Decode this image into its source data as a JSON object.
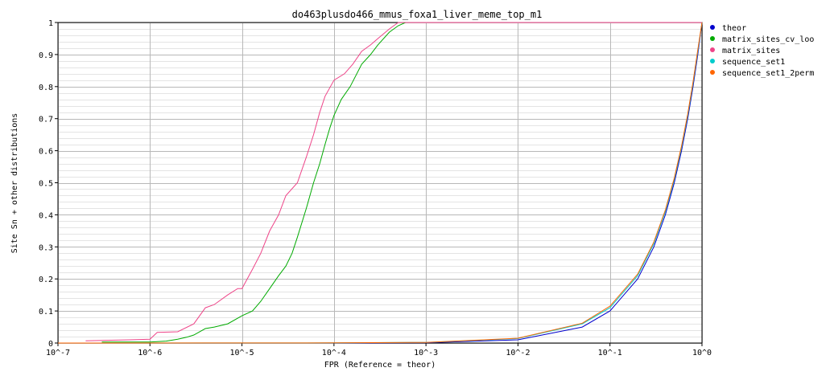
{
  "chart_data": {
    "type": "line",
    "title": "do463plusdo466_mmus_foxa1_liver_meme_top_m1",
    "xlabel": "FPR (Reference = theor)",
    "ylabel": "Site Sn + other distributions",
    "xscale": "log",
    "xlim": [
      1e-07,
      1
    ],
    "ylim": [
      0,
      1
    ],
    "x_tick_labels": [
      "10^-7",
      "10^-6",
      "10^-5",
      "10^-4",
      "10^-3",
      "10^-2",
      "10^-1",
      "10^0"
    ],
    "y_tick_labels": [
      "0",
      "0.1",
      "0.2",
      "0.3",
      "0.4",
      "0.5",
      "0.6",
      "0.7",
      "0.8",
      "0.9",
      "1"
    ],
    "grid": true,
    "legend_position": "right",
    "series": [
      {
        "name": "theor",
        "color": "#0000cc",
        "points": [
          [
            1e-07,
            0
          ],
          [
            0.0001,
            0.0001
          ],
          [
            0.001,
            0.001
          ],
          [
            0.01,
            0.01
          ],
          [
            0.05,
            0.05
          ],
          [
            0.1,
            0.1
          ],
          [
            0.2,
            0.2
          ],
          [
            0.3,
            0.3
          ],
          [
            0.4,
            0.4
          ],
          [
            0.5,
            0.5
          ],
          [
            0.6,
            0.6
          ],
          [
            0.7,
            0.7
          ],
          [
            0.8,
            0.8
          ],
          [
            0.9,
            0.9
          ],
          [
            1,
            1
          ]
        ]
      },
      {
        "name": "matrix_sites_cv_loo",
        "color": "#00aa00",
        "points": [
          [
            3e-07,
            0.003
          ],
          [
            1e-06,
            0.003
          ],
          [
            1.5e-06,
            0.006
          ],
          [
            2e-06,
            0.012
          ],
          [
            2.5e-06,
            0.018
          ],
          [
            3e-06,
            0.025
          ],
          [
            4e-06,
            0.045
          ],
          [
            5e-06,
            0.05
          ],
          [
            7e-06,
            0.06
          ],
          [
            1e-05,
            0.085
          ],
          [
            1.3e-05,
            0.1
          ],
          [
            1.6e-05,
            0.13
          ],
          [
            2e-05,
            0.17
          ],
          [
            2.5e-05,
            0.21
          ],
          [
            3e-05,
            0.24
          ],
          [
            3.5e-05,
            0.28
          ],
          [
            4e-05,
            0.33
          ],
          [
            5e-05,
            0.42
          ],
          [
            6e-05,
            0.5
          ],
          [
            7e-05,
            0.56
          ],
          [
            8e-05,
            0.62
          ],
          [
            9e-05,
            0.67
          ],
          [
            0.0001,
            0.71
          ],
          [
            0.00012,
            0.76
          ],
          [
            0.00015,
            0.8
          ],
          [
            0.0002,
            0.87
          ],
          [
            0.00025,
            0.9
          ],
          [
            0.0003,
            0.93
          ],
          [
            0.0004,
            0.97
          ],
          [
            0.0005,
            0.99
          ],
          [
            0.0006,
            1
          ],
          [
            0.001,
            1
          ],
          [
            1,
            1
          ]
        ]
      },
      {
        "name": "matrix_sites",
        "color": "#ee4488",
        "points": [
          [
            2e-07,
            0.007
          ],
          [
            6e-07,
            0.01
          ],
          [
            1e-06,
            0.012
          ],
          [
            1.2e-06,
            0.033
          ],
          [
            2e-06,
            0.035
          ],
          [
            3e-06,
            0.06
          ],
          [
            4e-06,
            0.11
          ],
          [
            5e-06,
            0.12
          ],
          [
            7e-06,
            0.15
          ],
          [
            9e-06,
            0.17
          ],
          [
            1e-05,
            0.17
          ],
          [
            1.3e-05,
            0.23
          ],
          [
            1.6e-05,
            0.28
          ],
          [
            2e-05,
            0.35
          ],
          [
            2.5e-05,
            0.4
          ],
          [
            3e-05,
            0.46
          ],
          [
            4e-05,
            0.5
          ],
          [
            5e-05,
            0.58
          ],
          [
            6e-05,
            0.65
          ],
          [
            7e-05,
            0.72
          ],
          [
            8e-05,
            0.77
          ],
          [
            0.0001,
            0.82
          ],
          [
            0.00013,
            0.84
          ],
          [
            0.00016,
            0.87
          ],
          [
            0.0002,
            0.91
          ],
          [
            0.00025,
            0.93
          ],
          [
            0.0003,
            0.95
          ],
          [
            0.0004,
            0.98
          ],
          [
            0.0005,
            1
          ],
          [
            1,
            1
          ]
        ]
      },
      {
        "name": "sequence_set1",
        "color": "#00cccc",
        "points": [
          [
            1e-07,
            0
          ],
          [
            0.0001,
            0.0005
          ],
          [
            0.001,
            0.002
          ],
          [
            0.01,
            0.014
          ],
          [
            0.05,
            0.06
          ],
          [
            0.1,
            0.11
          ],
          [
            0.2,
            0.21
          ],
          [
            0.3,
            0.31
          ],
          [
            0.4,
            0.41
          ],
          [
            0.5,
            0.51
          ],
          [
            0.6,
            0.61
          ],
          [
            0.7,
            0.71
          ],
          [
            0.8,
            0.81
          ],
          [
            0.9,
            0.91
          ],
          [
            1,
            1
          ]
        ]
      },
      {
        "name": "sequence_set1_2perm",
        "color": "#ff6600",
        "points": [
          [
            1e-07,
            0
          ],
          [
            0.0001,
            0.0005
          ],
          [
            0.001,
            0.002
          ],
          [
            0.01,
            0.015
          ],
          [
            0.05,
            0.062
          ],
          [
            0.1,
            0.115
          ],
          [
            0.2,
            0.215
          ],
          [
            0.3,
            0.315
          ],
          [
            0.4,
            0.415
          ],
          [
            0.5,
            0.515
          ],
          [
            0.6,
            0.615
          ],
          [
            0.7,
            0.715
          ],
          [
            0.8,
            0.815
          ],
          [
            0.9,
            0.915
          ],
          [
            1,
            1
          ]
        ]
      }
    ]
  }
}
